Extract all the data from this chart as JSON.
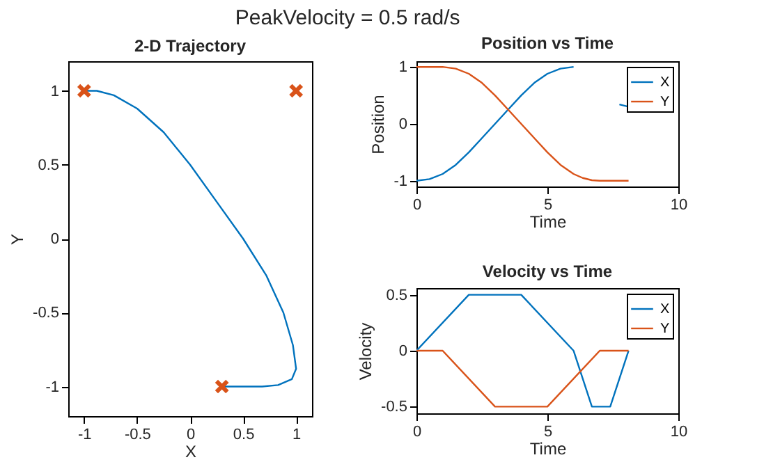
{
  "chart_data": [
    {
      "type": "line",
      "title": "2-D Trajectory",
      "annotations": [
        "PeakVelocity = 0.5 rad/s"
      ],
      "xlabel": "X",
      "ylabel": "Y",
      "xlim": [
        -1.15,
        1.15
      ],
      "ylim": [
        -1.2,
        1.2
      ],
      "xticks": [
        -1,
        -0.5,
        0,
        0.5,
        1
      ],
      "yticks": [
        -1,
        -0.5,
        0,
        0.5,
        1
      ],
      "grid": false,
      "legend": false,
      "series": [
        {
          "color": "#0072bd",
          "x": [
            -1,
            -0.97,
            -0.88,
            -0.72,
            -0.5,
            -0.25,
            0,
            0.25,
            0.5,
            0.72,
            0.88,
            0.97,
            1.0,
            0.96,
            0.83,
            0.68,
            0.48,
            0.34,
            0.3
          ],
          "values": [
            1,
            1,
            1,
            0.97,
            0.88,
            0.72,
            0.5,
            0.25,
            0,
            -0.25,
            -0.5,
            -0.72,
            -0.88,
            -0.95,
            -0.99,
            -1,
            -1,
            -1,
            -1
          ]
        },
        {
          "type": "scatter",
          "marker": "cross",
          "color": "#d95319",
          "x": [
            -1,
            1,
            0.3
          ],
          "values": [
            1,
            1,
            -1
          ]
        }
      ]
    },
    {
      "type": "line",
      "title": "Position vs Time",
      "xlabel": "Time",
      "ylabel": "Position",
      "xlim": [
        0,
        10
      ],
      "ylim": [
        -1.1,
        1.1
      ],
      "xticks": [
        0,
        5,
        10
      ],
      "yticks": [
        -1,
        0,
        1
      ],
      "grid": false,
      "legend": "top right",
      "x": [
        0,
        0.5,
        1,
        1.5,
        2,
        2.5,
        3,
        3.5,
        4,
        4.5,
        5,
        5.5,
        6,
        6.35,
        6.7,
        7,
        7.4,
        7.75,
        8.1
      ],
      "series": [
        {
          "name": "X",
          "color": "#0072bd",
          "values": [
            -1,
            -0.97,
            -0.88,
            -0.72,
            -0.5,
            -0.25,
            0,
            0.25,
            0.5,
            0.72,
            0.88,
            0.97,
            1.0,
            null,
            null,
            null,
            null,
            0.34,
            0.3
          ]
        },
        {
          "name": "Y",
          "color": "#d95319",
          "values": [
            1,
            1,
            1,
            0.97,
            0.88,
            0.72,
            0.5,
            0.25,
            0,
            -0.25,
            -0.5,
            -0.72,
            -0.88,
            -0.95,
            -0.99,
            -1,
            -1,
            -1,
            -1
          ]
        }
      ]
    },
    {
      "type": "line",
      "title": "Velocity vs Time",
      "xlabel": "Time",
      "ylabel": "Velocity",
      "xlim": [
        0,
        10
      ],
      "ylim": [
        -0.56,
        0.56
      ],
      "xticks": [
        0,
        5,
        10
      ],
      "yticks": [
        -0.5,
        0,
        0.5
      ],
      "grid": false,
      "legend": "top right",
      "series": [
        {
          "name": "X",
          "color": "#0072bd",
          "x": [
            0,
            2,
            4,
            6,
            6.7,
            7.4,
            8.1
          ],
          "values": [
            0,
            0.5,
            0.5,
            0,
            -0.5,
            -0.5,
            0
          ]
        },
        {
          "name": "Y",
          "color": "#d95319",
          "x": [
            0,
            1,
            3,
            5,
            7,
            8.1
          ],
          "values": [
            0,
            0,
            -0.5,
            -0.5,
            0,
            0
          ]
        }
      ]
    }
  ]
}
